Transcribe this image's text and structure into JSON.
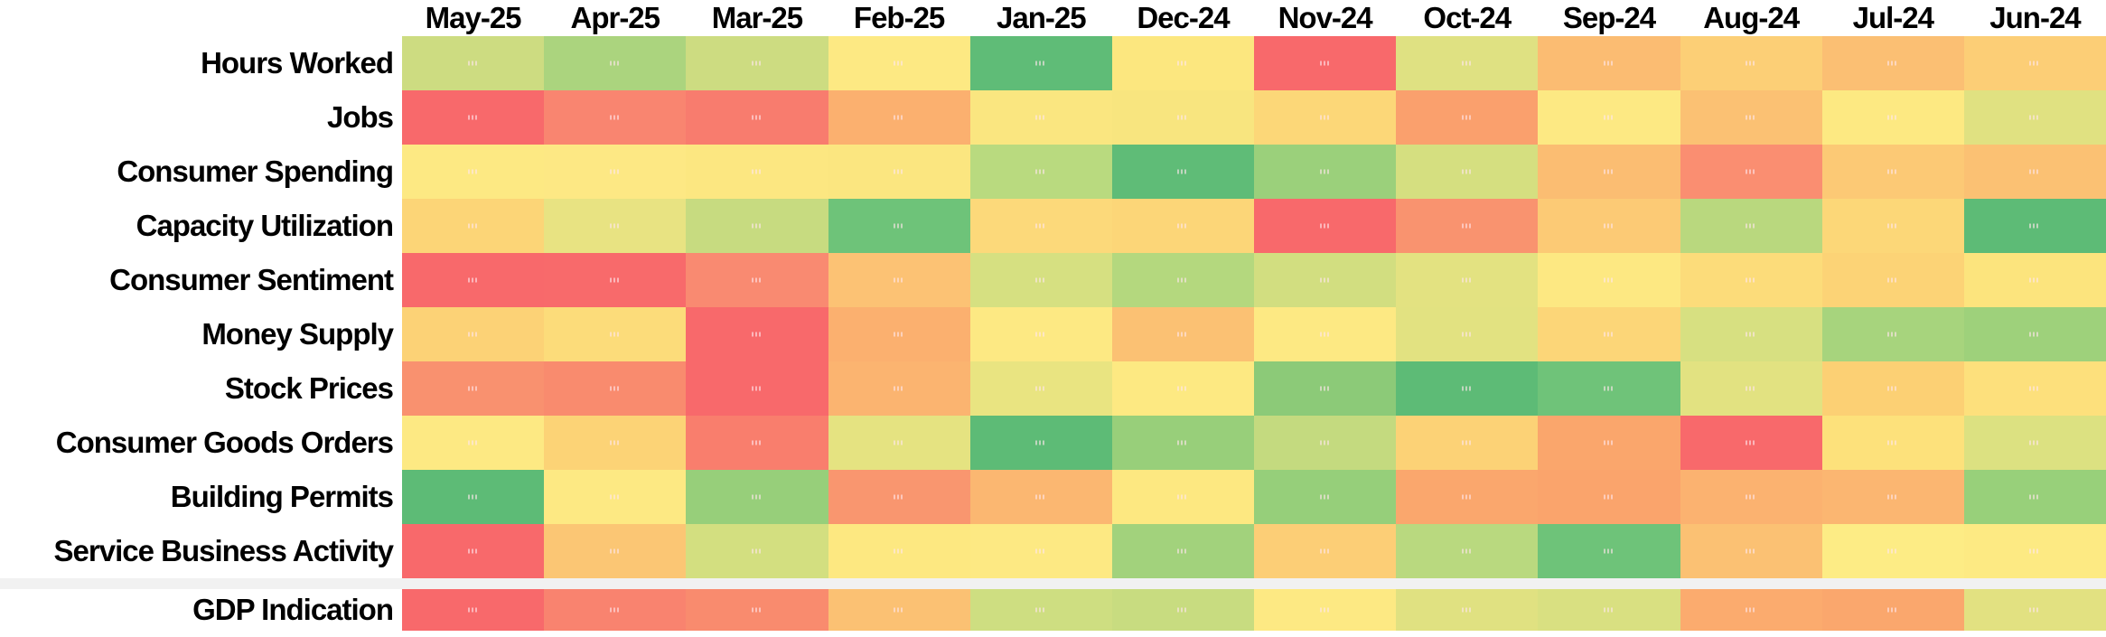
{
  "chart_data": {
    "type": "heatmap",
    "title": "",
    "legend": "none",
    "grid": "off",
    "value_text_in_cells": "micro-size, illegible",
    "columns": [
      "May-25",
      "Apr-25",
      "Mar-25",
      "Feb-25",
      "Jan-25",
      "Dec-24",
      "Nov-24",
      "Oct-24",
      "Sep-24",
      "Aug-24",
      "Jul-24",
      "Jun-24"
    ],
    "rows": [
      {
        "label": "Hours Worked",
        "colors": [
          "#CDDC81",
          "#ABD47E",
          "#CDDC81",
          "#FDE983",
          "#5FBC77",
          "#FCE77F",
          "#F8696B",
          "#DFE182",
          "#FBBC72",
          "#FCCF76",
          "#FBBF73",
          "#FCCE76"
        ]
      },
      {
        "label": "Jobs",
        "colors": [
          "#F8696B",
          "#F98570",
          "#F87C6E",
          "#FBB06F",
          "#FAE680",
          "#F8E57F",
          "#FCD778",
          "#FAA06D",
          "#FDE983",
          "#FBC173",
          "#FDE982",
          "#E0E181"
        ]
      },
      {
        "label": "Consumer Spending",
        "colors": [
          "#FDE983",
          "#FDE884",
          "#FCE781",
          "#FBE680",
          "#B9DA7F",
          "#5FBC77",
          "#9BD07B",
          "#D5DF80",
          "#FBBD72",
          "#FA8E71",
          "#FCC975",
          "#FBC173"
        ]
      },
      {
        "label": "Capacity Utilization",
        "colors": [
          "#FCD577",
          "#E8E382",
          "#C7DB80",
          "#6EC379",
          "#FCD97A",
          "#FCD678",
          "#F8696B",
          "#F9936F",
          "#FCCA75",
          "#B9D87E",
          "#FCD778",
          "#5DBB76"
        ]
      },
      {
        "label": "Consumer Sentiment",
        "colors": [
          "#F8696B",
          "#F86A6B",
          "#F98A71",
          "#FCC274",
          "#D6E081",
          "#B4D87E",
          "#D2DE80",
          "#E3E281",
          "#FDE882",
          "#FCDC7A",
          "#FCD376",
          "#FCE47D"
        ]
      },
      {
        "label": "Money Supply",
        "colors": [
          "#FCD276",
          "#FCDC7A",
          "#F8696B",
          "#FBB06F",
          "#FDE983",
          "#FBC173",
          "#FDE983",
          "#E2E281",
          "#FCD678",
          "#D7E081",
          "#A7D47D",
          "#9ED17B"
        ]
      },
      {
        "label": "Stock Prices",
        "colors": [
          "#F9916F",
          "#F98B6E",
          "#F8696B",
          "#FBB470",
          "#E9E481",
          "#FDE982",
          "#8CCA78",
          "#5DBB76",
          "#6FC379",
          "#E2E281",
          "#FCD074",
          "#FDE07C"
        ]
      },
      {
        "label": "Consumer Goods Orders",
        "colors": [
          "#FDE983",
          "#FCD376",
          "#F97E6D",
          "#E5E381",
          "#5DBB76",
          "#98CF7A",
          "#C4DA7F",
          "#FCD276",
          "#FAA66C",
          "#F8696B",
          "#FDE17B",
          "#DCE181"
        ]
      },
      {
        "label": "Building Permits",
        "colors": [
          "#5DBB76",
          "#FDE983",
          "#97CF7A",
          "#F9966F",
          "#FBB771",
          "#FDE881",
          "#96CF7A",
          "#FAA76D",
          "#FAA46C",
          "#FBB270",
          "#FBB671",
          "#98D07A"
        ]
      },
      {
        "label": "Service Business Activity",
        "colors": [
          "#F8696B",
          "#FBC674",
          "#D3DF80",
          "#FDE881",
          "#FDE983",
          "#A2D27C",
          "#FCCE76",
          "#B9D97F",
          "#6EC379",
          "#FBC173",
          "#FDEC85",
          "#FDEA83"
        ]
      }
    ],
    "gdp_row": {
      "label": "GDP Indication",
      "colors": [
        "#F8696B",
        "#F9836F",
        "#F98B6E",
        "#FBC173",
        "#CEDE81",
        "#C8DC80",
        "#FDE983",
        "#E0E181",
        "#D9E081",
        "#FBAB6E",
        "#FAA76D",
        "#E2E181"
      ]
    },
    "color_scale": {
      "low": "#F8696B",
      "mid": "#FFEB84",
      "high": "#63BE7B"
    },
    "separator_color": "#F1F1F1",
    "header_text_color": "#000000"
  }
}
